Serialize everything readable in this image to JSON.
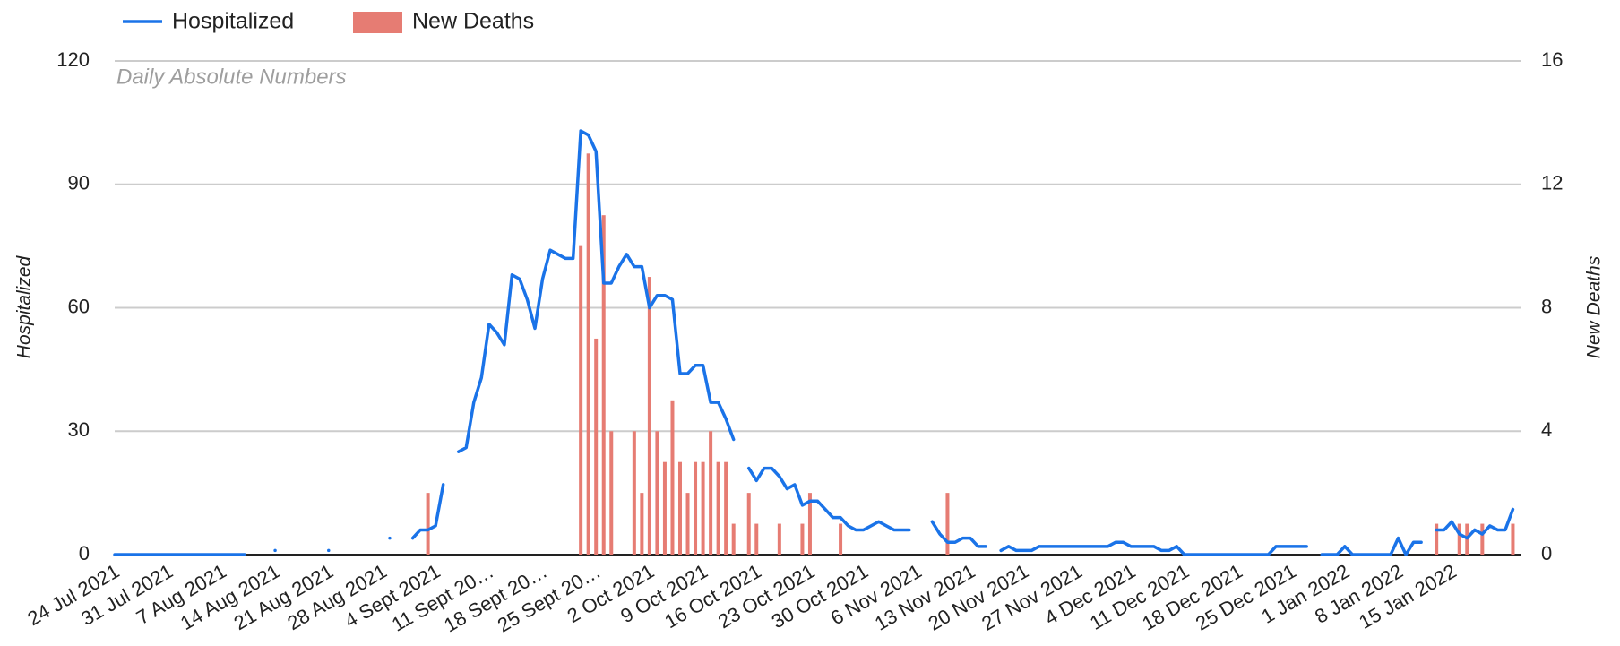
{
  "chart_data": {
    "type": "combo",
    "subtitle": "Daily Absolute Numbers",
    "y_label": "Hospitalized",
    "y2_label": "New Deaths",
    "categories": [
      "24 Jul 2021",
      null,
      null,
      null,
      null,
      null,
      null,
      "31 Jul 2021",
      null,
      null,
      null,
      null,
      null,
      null,
      "7 Aug 2021",
      null,
      null,
      null,
      null,
      null,
      null,
      "14 Aug 2021",
      null,
      null,
      null,
      null,
      null,
      null,
      "21 Aug 2021",
      null,
      null,
      null,
      null,
      null,
      null,
      "28 Aug 2021",
      null,
      null,
      null,
      null,
      null,
      null,
      "4 Sept 2021",
      null,
      null,
      null,
      null,
      null,
      null,
      "11 Sept 20…",
      null,
      null,
      null,
      null,
      null,
      null,
      "18 Sept 20…",
      null,
      null,
      null,
      null,
      null,
      null,
      "25 Sept 20…",
      null,
      null,
      null,
      null,
      null,
      null,
      "2 Oct 2021",
      null,
      null,
      null,
      null,
      null,
      null,
      "9 Oct 2021",
      null,
      null,
      null,
      null,
      null,
      null,
      "16 Oct 2021",
      null,
      null,
      null,
      null,
      null,
      null,
      "23 Oct 2021",
      null,
      null,
      null,
      null,
      null,
      null,
      "30 Oct 2021",
      null,
      null,
      null,
      null,
      null,
      null,
      "6 Nov 2021",
      null,
      null,
      null,
      null,
      null,
      null,
      "13 Nov 2021",
      null,
      null,
      null,
      null,
      null,
      null,
      "20 Nov 2021",
      null,
      null,
      null,
      null,
      null,
      null,
      "27 Nov 2021",
      null,
      null,
      null,
      null,
      null,
      null,
      "4 Dec 2021",
      null,
      null,
      null,
      null,
      null,
      null,
      "11 Dec 2021",
      null,
      null,
      null,
      null,
      null,
      null,
      "18 Dec 2021",
      null,
      null,
      null,
      null,
      null,
      null,
      "25 Dec 2021",
      null,
      null,
      null,
      null,
      null,
      null,
      "1 Jan 2022",
      null,
      null,
      null,
      null,
      null,
      null,
      "8 Jan 2022",
      null,
      null,
      null,
      null,
      null,
      null,
      "15 Jan 2022",
      null,
      null,
      null,
      null,
      null,
      null,
      null,
      null
    ],
    "series": [
      {
        "name": "Hospitalized",
        "type": "line",
        "color": "#1a73e8",
        "values": [
          0,
          0,
          0,
          0,
          0,
          0,
          0,
          0,
          0,
          0,
          0,
          0,
          0,
          0,
          0,
          0,
          0,
          0,
          null,
          null,
          null,
          1,
          null,
          null,
          null,
          null,
          null,
          null,
          1,
          null,
          null,
          null,
          null,
          null,
          null,
          null,
          4,
          null,
          null,
          4,
          6,
          6,
          7,
          17,
          null,
          25,
          26,
          37,
          43,
          56,
          54,
          51,
          68,
          67,
          62,
          55,
          67,
          74,
          73,
          72,
          72,
          103,
          102,
          98,
          66,
          66,
          70,
          73,
          70,
          70,
          60,
          63,
          63,
          62,
          44,
          44,
          46,
          46,
          37,
          37,
          33,
          28,
          null,
          21,
          18,
          21,
          21,
          19,
          16,
          17,
          12,
          13,
          13,
          11,
          9,
          9,
          7,
          6,
          6,
          7,
          8,
          7,
          6,
          6,
          6,
          null,
          null,
          8,
          5,
          3,
          3,
          4,
          4,
          2,
          2,
          null,
          1,
          2,
          1,
          1,
          1,
          2,
          2,
          2,
          2,
          2,
          2,
          2,
          2,
          2,
          2,
          3,
          3,
          2,
          2,
          2,
          2,
          1,
          1,
          2,
          0,
          0,
          0,
          0,
          0,
          0,
          0,
          0,
          0,
          0,
          0,
          0,
          2,
          2,
          2,
          2,
          2,
          null,
          0,
          0,
          0,
          2,
          0,
          0,
          0,
          0,
          0,
          0,
          4,
          0,
          3,
          3,
          null,
          6,
          6,
          8,
          5,
          4,
          6,
          5,
          7,
          6,
          6,
          11
        ]
      },
      {
        "name": "New Deaths",
        "type": "bar",
        "axis": "y2",
        "color": "#e67c73",
        "values": [
          0,
          0,
          0,
          0,
          0,
          0,
          0,
          0,
          0,
          0,
          0,
          0,
          0,
          0,
          0,
          0,
          0,
          0,
          0,
          0,
          0,
          0,
          0,
          0,
          0,
          0,
          0,
          0,
          0,
          0,
          0,
          0,
          0,
          0,
          0,
          0,
          0,
          0,
          0,
          0,
          0,
          2,
          0,
          0,
          0,
          0,
          0,
          0,
          0,
          0,
          0,
          0,
          0,
          0,
          0,
          0,
          0,
          0,
          0,
          0,
          0,
          10,
          13,
          7,
          11,
          4,
          0,
          0,
          4,
          2,
          9,
          4,
          3,
          5,
          3,
          2,
          3,
          3,
          4,
          3,
          3,
          1,
          0,
          2,
          1,
          0,
          0,
          1,
          0,
          0,
          1,
          2,
          0,
          0,
          0,
          1,
          0,
          0,
          0,
          0,
          0,
          0,
          0,
          0,
          0,
          0,
          0,
          0,
          0,
          2,
          0,
          0,
          0,
          0,
          0,
          0,
          0,
          0,
          0,
          0,
          0,
          0,
          0,
          0,
          0,
          0,
          0,
          0,
          0,
          0,
          0,
          0,
          0,
          0,
          0,
          0,
          0,
          0,
          0,
          0,
          0,
          0,
          0,
          0,
          0,
          0,
          0,
          0,
          0,
          0,
          0,
          0,
          0,
          0,
          0,
          0,
          0,
          0,
          0,
          0,
          0,
          0,
          0,
          0,
          0,
          0,
          0,
          0,
          0,
          0,
          0,
          0,
          0,
          1,
          0,
          0,
          1,
          1,
          0,
          1,
          0,
          0,
          0,
          1
        ]
      }
    ],
    "ylim": [
      0,
      120
    ],
    "yticks": [
      0,
      30,
      60,
      90,
      120
    ],
    "y2lim": [
      0,
      16
    ],
    "y2ticks": [
      0,
      4,
      8,
      12,
      16
    ],
    "grid": true,
    "legend": "top"
  }
}
